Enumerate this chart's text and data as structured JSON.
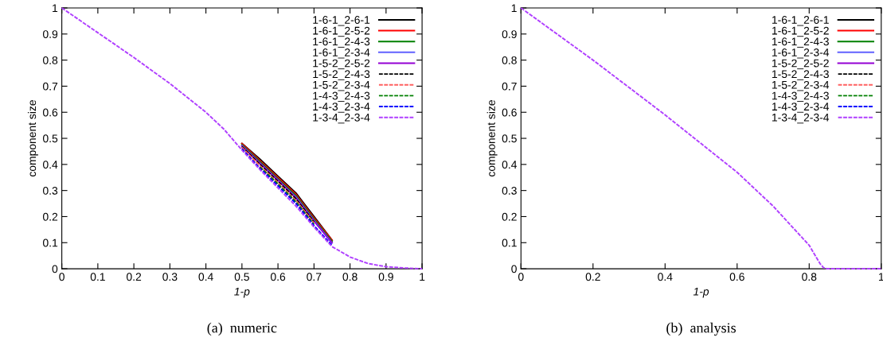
{
  "chart_data": [
    {
      "type": "line",
      "title": "(a)  numeric",
      "xlabel": "1-p",
      "ylabel": "component size",
      "xlim": [
        0,
        1
      ],
      "ylim": [
        0,
        1
      ],
      "xticks": [
        0,
        0.1,
        0.2,
        0.3,
        0.4,
        0.5,
        0.6,
        0.7,
        0.8,
        0.9,
        1
      ],
      "yticks": [
        0,
        0.1,
        0.2,
        0.3,
        0.4,
        0.5,
        0.6,
        0.7,
        0.8,
        0.9,
        1
      ],
      "grid": false,
      "legend": "top right",
      "marker": "none",
      "x": [
        0,
        0.1,
        0.2,
        0.3,
        0.4,
        0.45,
        0.5,
        0.55,
        0.6,
        0.65,
        0.7,
        0.75,
        0.8,
        0.85,
        0.9,
        0.95,
        1
      ],
      "series": [
        {
          "name": "1-6-1_2-6-1",
          "color": "#000000",
          "line_style": "solid",
          "values": [
            null,
            null,
            null,
            null,
            null,
            null,
            0.48,
            0.42,
            0.355,
            0.29,
            0.2,
            0.11,
            null,
            null,
            null,
            null,
            null
          ]
        },
        {
          "name": "1-6-1_2-5-2",
          "color": "#ff0000",
          "line_style": "solid",
          "values": [
            null,
            null,
            null,
            null,
            null,
            null,
            0.48,
            0.415,
            0.35,
            0.285,
            0.195,
            0.11,
            null,
            null,
            null,
            null,
            null
          ]
        },
        {
          "name": "1-6-1_2-4-3",
          "color": "#008000",
          "line_style": "solid",
          "values": [
            null,
            null,
            null,
            null,
            null,
            null,
            0.475,
            0.41,
            0.345,
            0.28,
            0.19,
            0.105,
            null,
            null,
            null,
            null,
            null
          ]
        },
        {
          "name": "1-6-1_2-3-4",
          "color": "#6060ff",
          "line_style": "solid",
          "values": [
            null,
            null,
            null,
            null,
            null,
            null,
            0.472,
            0.405,
            0.34,
            0.275,
            0.185,
            0.1,
            null,
            null,
            null,
            null,
            null
          ]
        },
        {
          "name": "1-5-2_2-5-2",
          "color": "#9400d3",
          "line_style": "solid",
          "values": [
            null,
            null,
            null,
            null,
            null,
            null,
            0.47,
            0.405,
            0.34,
            0.272,
            0.183,
            0.1,
            null,
            null,
            null,
            null,
            null
          ]
        },
        {
          "name": "1-5-2_2-4-3",
          "color": "#000000",
          "line_style": "dashed",
          "values": [
            null,
            null,
            null,
            null,
            null,
            null,
            0.468,
            0.4,
            0.335,
            0.268,
            0.18,
            null,
            null,
            null,
            null,
            null,
            null
          ]
        },
        {
          "name": "1-5-2_2-3-4",
          "color": "#ff6060",
          "line_style": "dashed",
          "values": [
            null,
            null,
            null,
            null,
            null,
            null,
            0.465,
            0.395,
            0.33,
            0.262,
            0.175,
            null,
            null,
            null,
            null,
            null,
            null
          ]
        },
        {
          "name": "1-4-3_2-4-3",
          "color": "#008000",
          "line_style": "dashed",
          "values": [
            null,
            null,
            null,
            null,
            null,
            null,
            null,
            0.39,
            0.325,
            0.256,
            0.17,
            null,
            null,
            null,
            null,
            null,
            null
          ]
        },
        {
          "name": "1-4-3_2-3-4",
          "color": "#0000ff",
          "line_style": "dashed",
          "values": [
            null,
            null,
            null,
            null,
            null,
            null,
            0.46,
            0.385,
            0.318,
            0.25,
            0.165,
            0.09,
            null,
            null,
            null,
            null,
            null
          ]
        },
        {
          "name": "1-3-4_2-3-4",
          "color": "#b040ff",
          "line_style": "dashed",
          "values": [
            1,
            0.905,
            0.81,
            0.71,
            0.6,
            0.535,
            0.455,
            0.38,
            0.31,
            0.24,
            0.16,
            0.085,
            0.045,
            0.02,
            0.008,
            0.003,
            0
          ]
        }
      ]
    },
    {
      "type": "line",
      "title": "(b)  analysis",
      "xlabel": "1-p",
      "ylabel": "component size",
      "xlim": [
        0,
        1
      ],
      "ylim": [
        0,
        1
      ],
      "xticks": [
        0,
        0.2,
        0.4,
        0.6,
        0.8,
        1
      ],
      "yticks": [
        0,
        0.1,
        0.2,
        0.3,
        0.4,
        0.5,
        0.6,
        0.7,
        0.8,
        0.9,
        1
      ],
      "grid": false,
      "legend": "top right",
      "marker": "none",
      "x": [
        0,
        0.1,
        0.2,
        0.3,
        0.4,
        0.5,
        0.6,
        0.7,
        0.8,
        0.83,
        0.84,
        0.85,
        0.9,
        1
      ],
      "series": [
        {
          "name": "1-6-1_2-6-1",
          "color": "#000000",
          "line_style": "solid",
          "values": [
            null,
            null,
            null,
            null,
            null,
            null,
            null,
            null,
            null,
            null,
            null,
            null,
            null,
            null
          ]
        },
        {
          "name": "1-6-1_2-5-2",
          "color": "#ff0000",
          "line_style": "solid",
          "values": [
            null,
            null,
            null,
            null,
            null,
            null,
            null,
            null,
            null,
            null,
            null,
            null,
            null,
            null
          ]
        },
        {
          "name": "1-6-1_2-4-3",
          "color": "#008000",
          "line_style": "solid",
          "values": [
            null,
            null,
            null,
            null,
            null,
            null,
            null,
            null,
            null,
            null,
            null,
            null,
            null,
            null
          ]
        },
        {
          "name": "1-6-1_2-3-4",
          "color": "#6060ff",
          "line_style": "solid",
          "values": [
            null,
            null,
            null,
            null,
            null,
            null,
            null,
            null,
            null,
            null,
            null,
            null,
            null,
            null
          ]
        },
        {
          "name": "1-5-2_2-5-2",
          "color": "#9400d3",
          "line_style": "solid",
          "values": [
            null,
            null,
            null,
            null,
            null,
            null,
            null,
            null,
            null,
            null,
            null,
            null,
            null,
            null
          ]
        },
        {
          "name": "1-5-2_2-4-3",
          "color": "#000000",
          "line_style": "dashed",
          "values": [
            null,
            null,
            null,
            null,
            null,
            null,
            null,
            null,
            null,
            null,
            null,
            null,
            null,
            null
          ]
        },
        {
          "name": "1-5-2_2-3-4",
          "color": "#ff6060",
          "line_style": "dashed",
          "values": [
            null,
            null,
            null,
            null,
            null,
            null,
            null,
            null,
            null,
            null,
            null,
            null,
            null,
            null
          ]
        },
        {
          "name": "1-4-3_2-4-3",
          "color": "#008000",
          "line_style": "dashed",
          "values": [
            null,
            null,
            null,
            null,
            null,
            null,
            null,
            null,
            null,
            null,
            null,
            null,
            null,
            null
          ]
        },
        {
          "name": "1-4-3_2-3-4",
          "color": "#0000ff",
          "line_style": "dashed",
          "values": [
            null,
            null,
            null,
            null,
            null,
            null,
            null,
            null,
            null,
            null,
            null,
            null,
            null,
            null
          ]
        },
        {
          "name": "1-3-4_2-3-4",
          "color": "#b040ff",
          "line_style": "dashed",
          "values": [
            1,
            0.9,
            0.8,
            0.695,
            0.59,
            0.48,
            0.37,
            0.24,
            0.09,
            0.02,
            0.004,
            0,
            0,
            0
          ]
        }
      ]
    }
  ]
}
